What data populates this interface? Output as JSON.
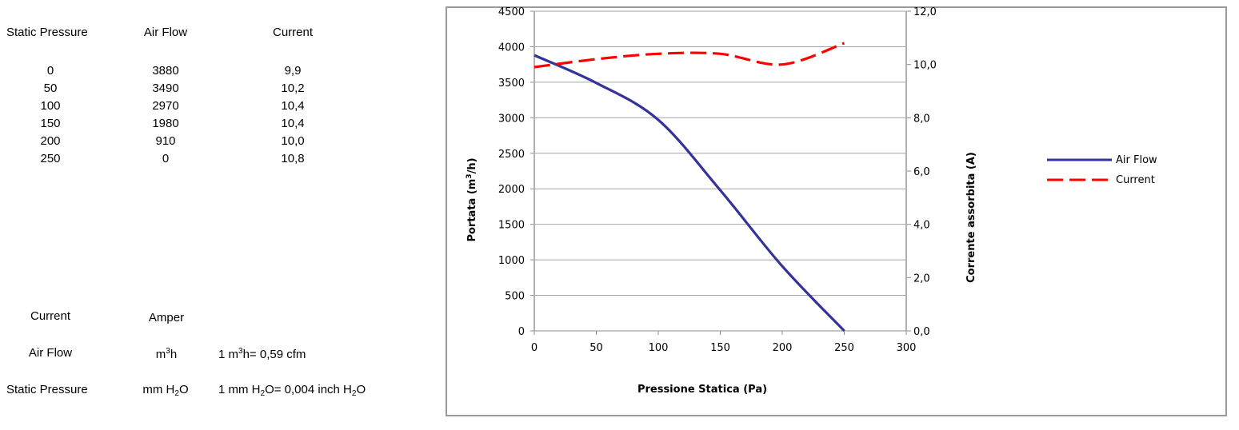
{
  "table": {
    "headers": [
      "Static Pressure",
      "Air Flow",
      "Current"
    ],
    "rows": [
      [
        "0",
        "3880",
        "9,9"
      ],
      [
        "50",
        "3490",
        "10,2"
      ],
      [
        "100",
        "2970",
        "10,4"
      ],
      [
        "150",
        "1980",
        "10,4"
      ],
      [
        "200",
        "910",
        "10,0"
      ],
      [
        "250",
        "0",
        "10,8"
      ]
    ]
  },
  "units": {
    "current": {
      "label": "Current",
      "unit": "Amper"
    },
    "air_flow": {
      "label": "Air Flow",
      "unit_base": "m",
      "unit_sup": "3",
      "unit_tail": "h",
      "conv_a": "1 m",
      "conv_sup": "3",
      "conv_b": "h= 0,59 cfm"
    },
    "static_pressure": {
      "label": "Static Pressure",
      "unit_a": "mm H",
      "unit_sub": "2",
      "unit_b": "O",
      "conv_a": "1 mm H",
      "conv_sub1": "2",
      "conv_b": "O= 0,004 inch H",
      "conv_sub2": "2",
      "conv_c": "O"
    }
  },
  "chart_data": {
    "type": "line",
    "title": "",
    "xlabel": "Pressione Statica (Pa)",
    "ylabel": "Portata (m³/h)",
    "ylabel_base": "Portata (m",
    "ylabel_sup": "3",
    "ylabel_tail": "/h)",
    "y2label": "Corrente assorbita (A)",
    "xlim": [
      0,
      300
    ],
    "ylim": [
      0,
      4500
    ],
    "y2lim": [
      0,
      12
    ],
    "x_ticks": [
      "0",
      "50",
      "100",
      "150",
      "200",
      "250",
      "300"
    ],
    "y_ticks": [
      "0",
      "500",
      "1000",
      "1500",
      "2000",
      "2500",
      "3000",
      "3500",
      "4000",
      "4500"
    ],
    "y2_ticks": [
      "0,0",
      "2,0",
      "4,0",
      "6,0",
      "8,0",
      "10,0",
      "12,0"
    ],
    "grid": true,
    "legend_position": "right",
    "x": [
      0,
      50,
      100,
      150,
      200,
      250
    ],
    "series": [
      {
        "name": "Air Flow",
        "axis": "left",
        "color": "#333399",
        "dash": "solid",
        "values": [
          3880,
          3490,
          2970,
          1980,
          910,
          0
        ]
      },
      {
        "name": "Current",
        "axis": "right",
        "color": "#ff0000",
        "dash": "dashed",
        "values": [
          9.9,
          10.2,
          10.4,
          10.4,
          10.0,
          10.8
        ]
      }
    ]
  }
}
